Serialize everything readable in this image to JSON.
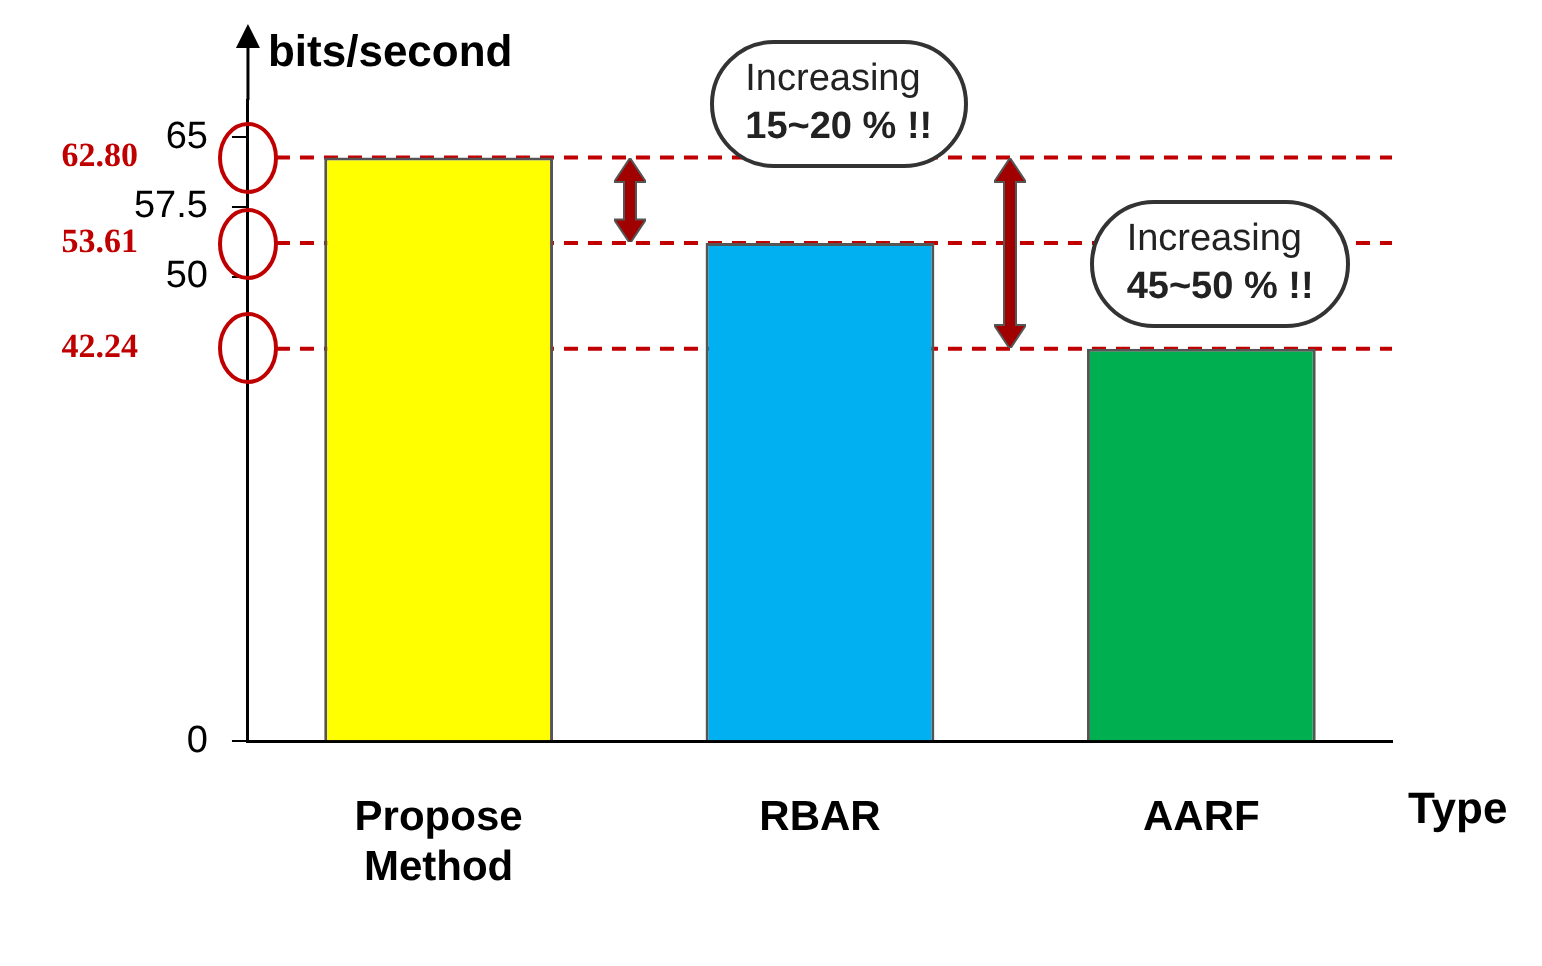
{
  "chart_data": {
    "type": "bar",
    "ylabel": "bits/second",
    "xlabel": "Type",
    "categories": [
      "Propose Method",
      "RBAR",
      "AARF"
    ],
    "values": [
      62.8,
      53.61,
      42.24
    ],
    "colors": [
      "#ffff00",
      "#00b0f0",
      "#00b050"
    ],
    "ylim": [
      0,
      69
    ],
    "yticks": [
      0,
      50,
      57.5,
      65
    ],
    "ref_lines": [
      {
        "axis": "y",
        "value": 62.8,
        "label": "62.80",
        "color": "#c00000",
        "line_style": "dashed"
      },
      {
        "axis": "y",
        "value": 53.61,
        "label": "53.61",
        "color": "#c00000",
        "line_style": "dashed"
      },
      {
        "axis": "y",
        "value": 42.24,
        "label": "42.24",
        "color": "#c00000",
        "line_style": "dashed"
      }
    ],
    "annotations": [
      "Increasing\n15~20 % !!",
      "Increasing\n45~50 % !!"
    ],
    "grid": false,
    "legend": false
  }
}
